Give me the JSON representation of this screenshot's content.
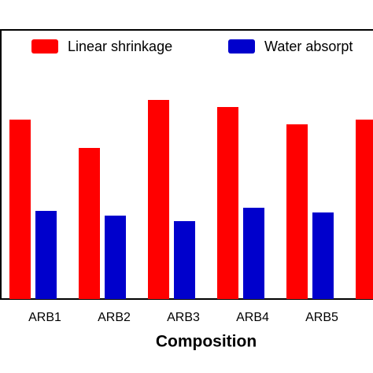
{
  "chart_data": {
    "type": "bar",
    "categories": [
      "ARB1",
      "ARB2",
      "ARB3",
      "ARB4",
      "ARB5",
      null
    ],
    "series": [
      {
        "name": "Linear shrinkage",
        "color": "#ff0000",
        "values": [
          228,
          192,
          253,
          244,
          222,
          228
        ]
      },
      {
        "name": "Water absorpt",
        "color": "#0000cc",
        "values": [
          112,
          106,
          99,
          116,
          110,
          null
        ]
      }
    ],
    "xlabel": "Composition",
    "ylim": [
      0,
      342
    ]
  }
}
